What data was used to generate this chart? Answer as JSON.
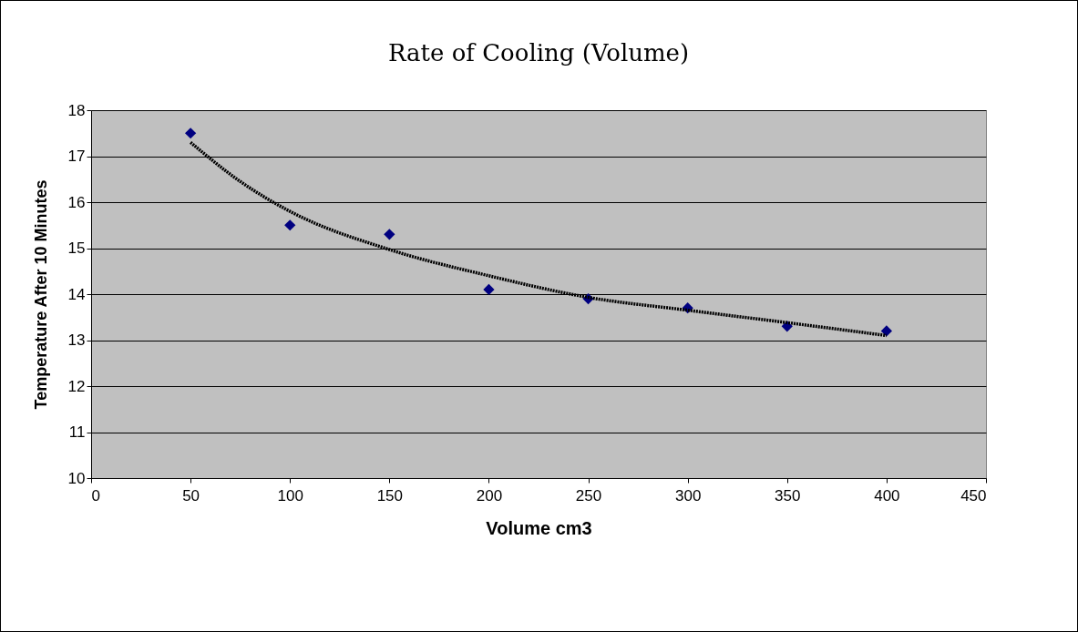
{
  "chart_data": {
    "type": "scatter",
    "title": "Rate of Cooling (Volume)",
    "xlabel": "Volume cm3",
    "ylabel": "Temperature After 10 Minutes",
    "xlim": [
      0,
      450
    ],
    "xticks": [
      0,
      50,
      100,
      150,
      200,
      250,
      300,
      350,
      400,
      450
    ],
    "ylim": [
      10,
      18
    ],
    "yticks": [
      10,
      11,
      12,
      13,
      14,
      15,
      16,
      17,
      18
    ],
    "grid": "y",
    "series": [
      {
        "marker": "diamond",
        "color": "#000080",
        "x": [
          50,
          100,
          150,
          200,
          250,
          300,
          350,
          400
        ],
        "values": [
          17.5,
          15.5,
          15.3,
          14.1,
          13.9,
          13.7,
          13.3,
          13.2
        ]
      },
      {
        "type": "line",
        "color": "#000000",
        "line_style": "dotted",
        "x": [
          50,
          75,
          100,
          150,
          200,
          250,
          300,
          350,
          400
        ],
        "values": [
          17.3,
          16.45,
          15.8,
          14.97,
          14.4,
          13.93,
          13.65,
          13.38,
          13.1
        ]
      }
    ]
  }
}
